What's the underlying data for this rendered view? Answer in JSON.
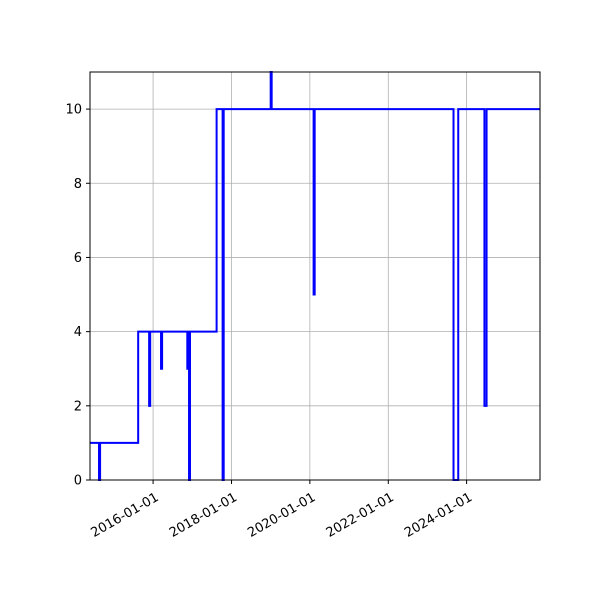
{
  "chart_data": {
    "type": "line",
    "title": "",
    "xlabel": "",
    "ylabel": "",
    "x_axis": "date",
    "xlim": [
      "2014-05-23",
      "2025-11-15"
    ],
    "ylim": [
      0,
      11
    ],
    "grid": true,
    "legend": "none",
    "line_color": "#0000ff",
    "grid_color": "#b0b0b0",
    "x_ticks": [
      {
        "value": "2016-01-01",
        "label": "2016-01-01"
      },
      {
        "value": "2018-01-01",
        "label": "2018-01-01"
      },
      {
        "value": "2020-01-01",
        "label": "2020-01-01"
      },
      {
        "value": "2022-01-01",
        "label": "2022-01-01"
      },
      {
        "value": "2024-01-01",
        "label": "2024-01-01"
      }
    ],
    "y_ticks": [
      0,
      2,
      4,
      6,
      8,
      10
    ],
    "series": [
      {
        "name": "",
        "step": true,
        "points": [
          {
            "x": "2014-05-23",
            "y": 1
          },
          {
            "x": "2014-08-15",
            "y": 0
          },
          {
            "x": "2014-08-25",
            "y": 1
          },
          {
            "x": "2015-08-15",
            "y": 4
          },
          {
            "x": "2015-11-25",
            "y": 2
          },
          {
            "x": "2015-12-05",
            "y": 4
          },
          {
            "x": "2016-03-15",
            "y": 3
          },
          {
            "x": "2016-03-25",
            "y": 4
          },
          {
            "x": "2016-11-15",
            "y": 3
          },
          {
            "x": "2016-11-25",
            "y": 4
          },
          {
            "x": "2016-12-01",
            "y": 0
          },
          {
            "x": "2016-12-10",
            "y": 4
          },
          {
            "x": "2017-08-15",
            "y": 10
          },
          {
            "x": "2017-10-10",
            "y": 0
          },
          {
            "x": "2017-10-20",
            "y": 10
          },
          {
            "x": "2019-01-01",
            "y": 11
          },
          {
            "x": "2019-01-10",
            "y": 10
          },
          {
            "x": "2020-02-05",
            "y": 5
          },
          {
            "x": "2020-02-15",
            "y": 10
          },
          {
            "x": "2023-09-01",
            "y": 0
          },
          {
            "x": "2023-10-15",
            "y": 10
          },
          {
            "x": "2024-06-15",
            "y": 2
          },
          {
            "x": "2024-07-05",
            "y": 10
          },
          {
            "x": "2025-11-15",
            "y": 10
          }
        ]
      }
    ]
  }
}
